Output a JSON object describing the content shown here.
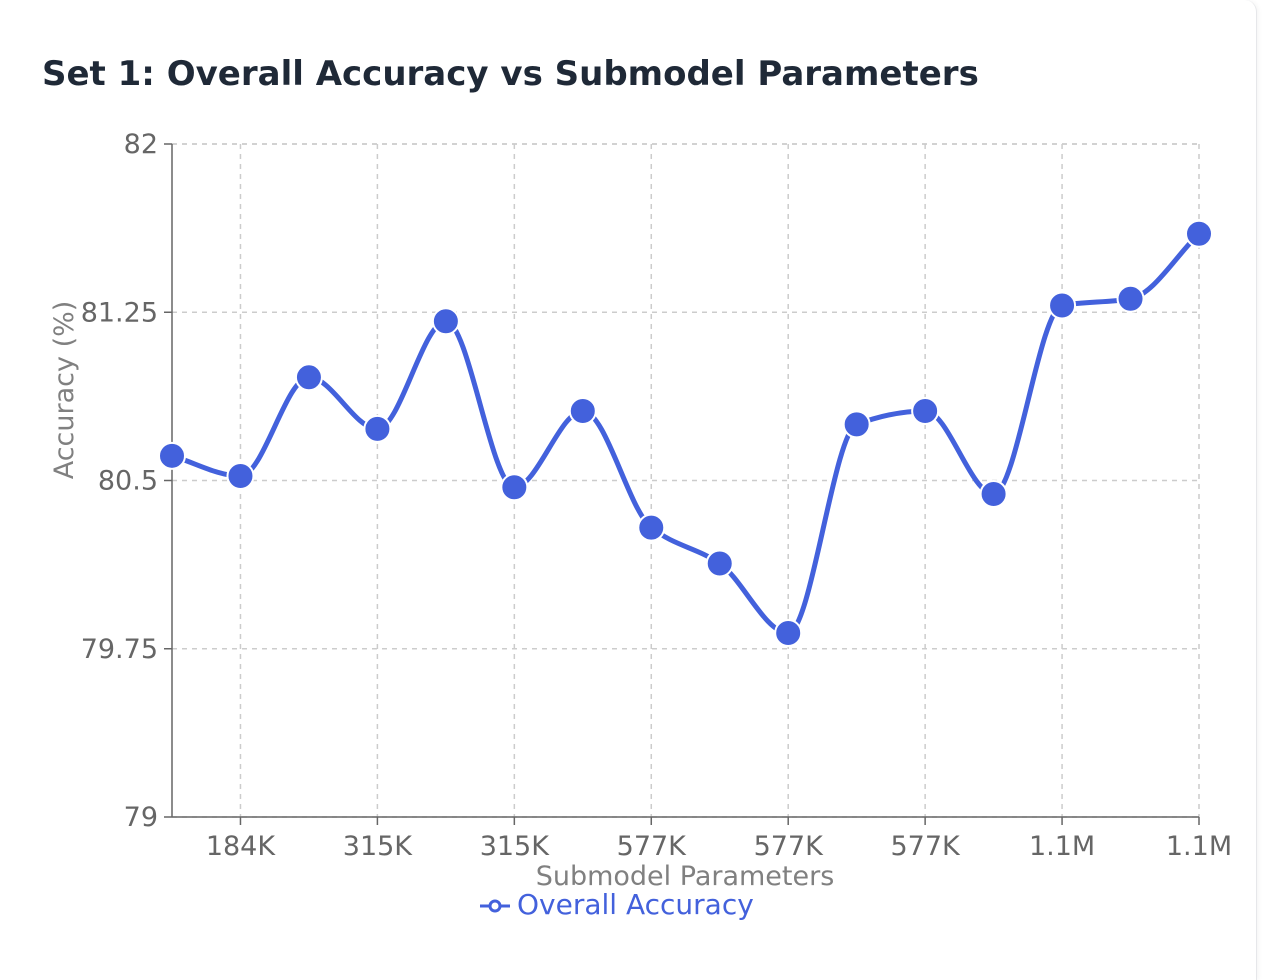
{
  "chart_data": {
    "type": "line",
    "title": "Set 1: Overall Accuracy vs Submodel Parameters",
    "xlabel": "Submodel Parameters",
    "ylabel": "Accuracy (%)",
    "ylim": [
      79,
      82
    ],
    "yticks": [
      "79",
      "79.75",
      "80.5",
      "81.25",
      "82"
    ],
    "ytick_values": [
      79,
      79.75,
      80.5,
      81.25,
      82
    ],
    "x_tick_labels": [
      "184K",
      "315K",
      "315K",
      "577K",
      "577K",
      "577K",
      "1.1M",
      "1.1M"
    ],
    "point_count": 16,
    "grid": true,
    "legend": "bottom-center",
    "series": [
      {
        "name": "Overall Accuracy",
        "color": "#4361dc",
        "curve": "smooth",
        "values": [
          80.61,
          80.52,
          80.96,
          80.73,
          81.21,
          80.47,
          80.81,
          80.29,
          80.13,
          79.82,
          80.75,
          80.81,
          80.44,
          81.28,
          81.31,
          81.6
        ]
      }
    ]
  }
}
